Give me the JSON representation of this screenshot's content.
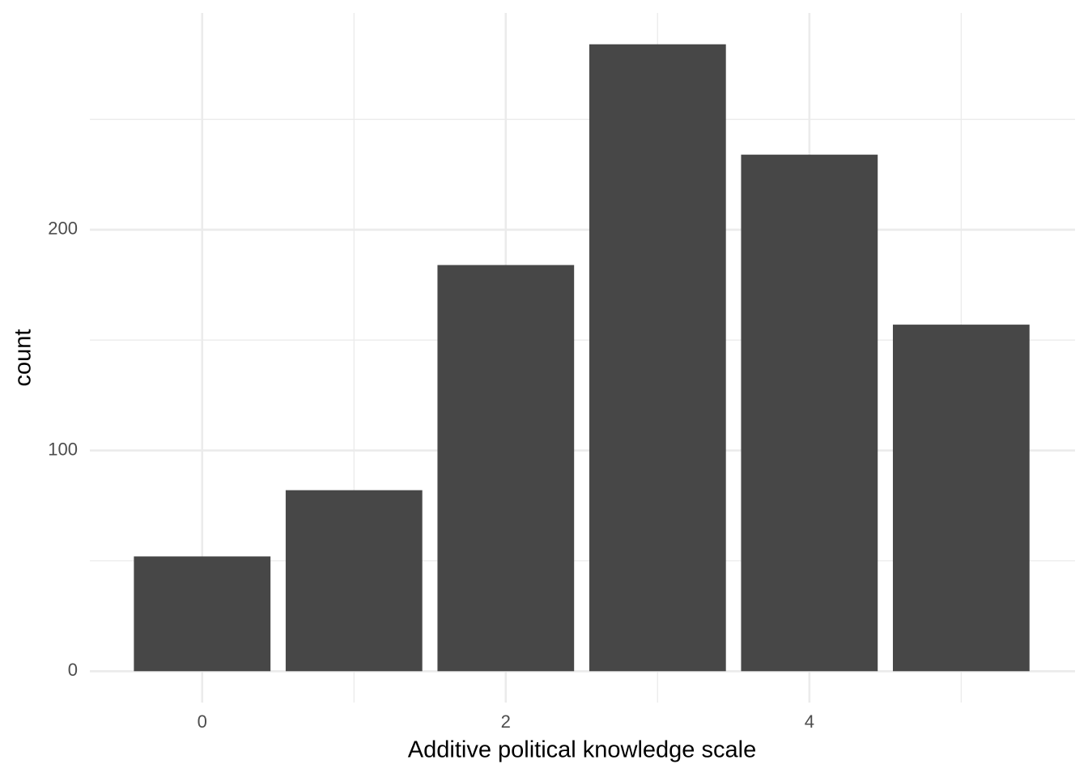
{
  "chart_data": {
    "type": "bar",
    "x_label": "Additive political knowledge scale",
    "y_label": "count",
    "x": [
      0,
      1,
      2,
      3,
      4,
      5
    ],
    "values": [
      52,
      82,
      184,
      284,
      234,
      157
    ],
    "color": "#474747",
    "xlim": [
      -0.74,
      5.75
    ],
    "xticks": [
      0,
      2,
      4
    ],
    "xminor": [
      1,
      3,
      5
    ],
    "ylim": [
      -14.2,
      298.2
    ],
    "yticks": [
      0,
      100,
      200
    ],
    "yminor": [
      50,
      150,
      250
    ],
    "grid": true
  }
}
